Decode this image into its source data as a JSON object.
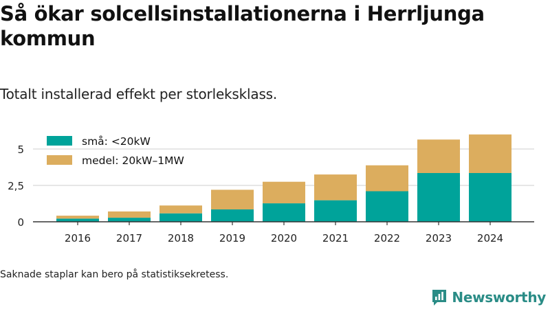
{
  "header": {
    "title": "Så ökar solcellsinstallationerna i Herrljunga kommun",
    "subtitle": "Totalt installerad effekt per storleksklass."
  },
  "footer": {
    "note": "Saknade staplar kan bero på statistiksekretess.",
    "brand": "Newsworthy",
    "brand_icon": "newsworthy-logo-icon"
  },
  "colors": {
    "small": "#00a39a",
    "medium": "#dcad5e",
    "grid": "#dddddd",
    "axis": "#333333",
    "brand": "#2a8c86"
  },
  "chart_data": {
    "type": "bar",
    "stacked": true,
    "categories": [
      "2016",
      "2017",
      "2018",
      "2019",
      "2020",
      "2021",
      "2022",
      "2023",
      "2024"
    ],
    "series": [
      {
        "name": "små: <20kW",
        "color": "#00a39a",
        "values": [
          0.22,
          0.28,
          0.58,
          0.85,
          1.27,
          1.48,
          2.1,
          3.35,
          3.35
        ]
      },
      {
        "name": "medel: 20kW–1MW",
        "color": "#dcad5e",
        "values": [
          0.2,
          0.43,
          0.54,
          1.35,
          1.48,
          1.77,
          1.78,
          2.3,
          2.65
        ]
      }
    ],
    "title": "Så ökar solcellsinstallationerna i Herrljunga kommun",
    "subtitle": "Totalt installerad effekt per storleksklass.",
    "xlabel": "",
    "ylabel": "",
    "ylim": [
      0,
      6
    ],
    "yticks": [
      0,
      2.5,
      5
    ],
    "ytick_labels": [
      "0",
      "2,5",
      "5"
    ],
    "grid": true,
    "legend_position": "top-left"
  }
}
